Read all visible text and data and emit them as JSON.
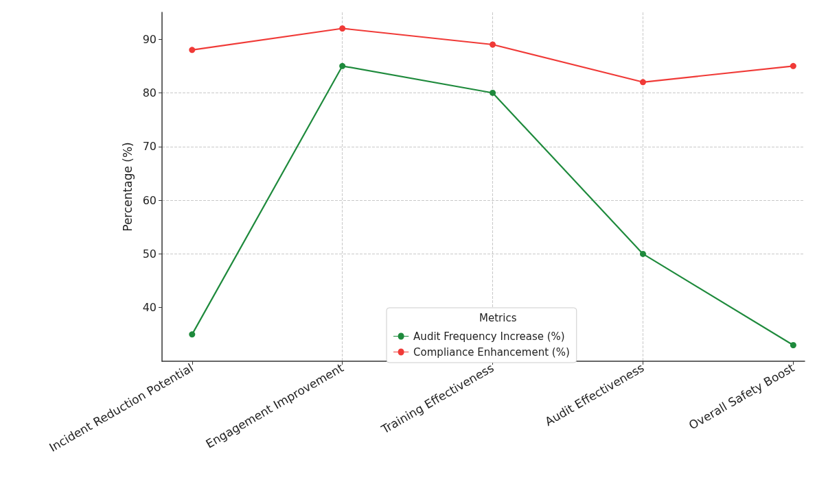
{
  "chart_data": {
    "type": "line",
    "ylabel": "Percentage (%)",
    "legend_title": "Metrics",
    "categories": [
      "Incident Reduction Potential",
      "Engagement Improvement",
      "Training Effectiveness",
      "Audit Effectiveness",
      "Overall Safety Boost"
    ],
    "series": [
      {
        "name": "Audit Frequency Increase (%)",
        "color": "#1e8a3c",
        "values": [
          35,
          85,
          80,
          50,
          33
        ]
      },
      {
        "name": "Compliance Enhancement (%)",
        "color": "#f03a37",
        "values": [
          88,
          92,
          89,
          82,
          85
        ]
      }
    ],
    "ylim": [
      30,
      95
    ],
    "yticks": [
      40,
      50,
      60,
      70,
      80,
      90
    ],
    "grid": true,
    "legend": "bottom",
    "marker": "circle",
    "line_style": "solid"
  }
}
